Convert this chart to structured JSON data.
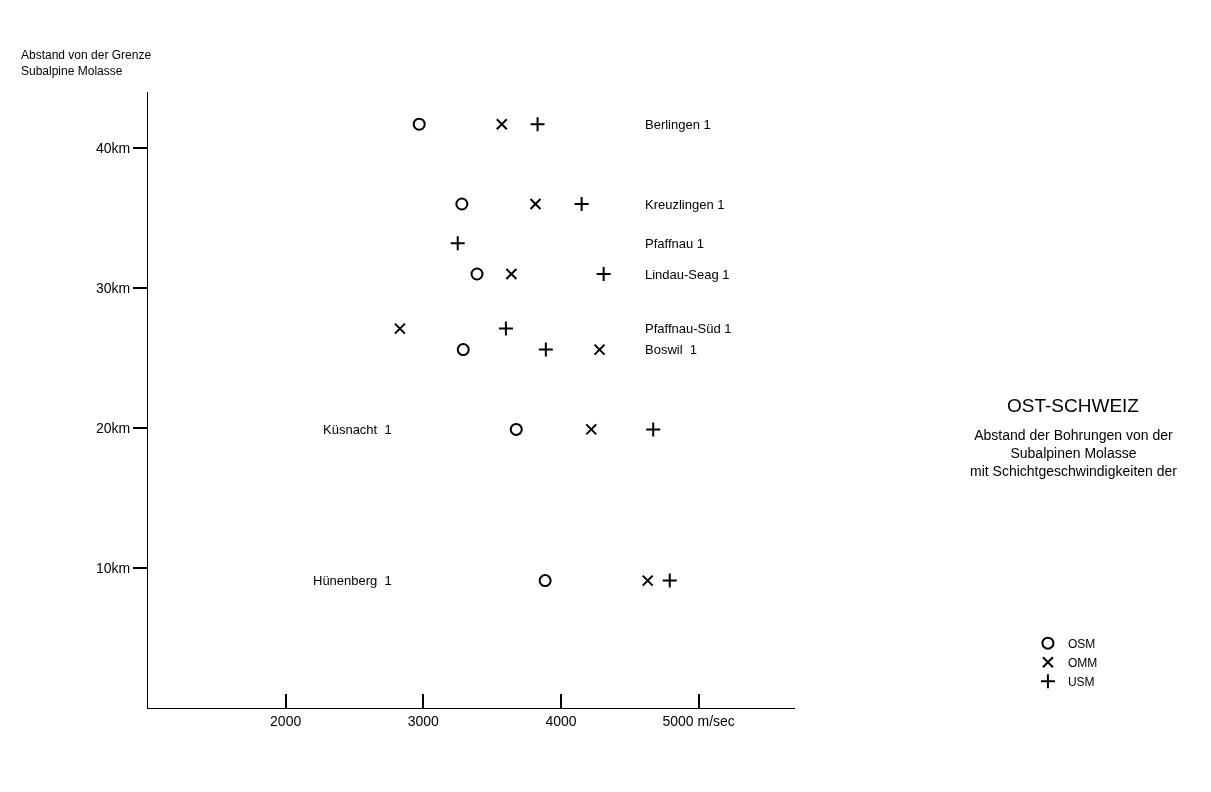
{
  "chart_data": {
    "type": "scatter",
    "title": "OST-SCHWEIZ",
    "subtitle": "Abstand der Bohrungen von der\nSubalpinen Molasse\nmit Schichtgeschwindigkeiten der",
    "ylabel": "Abstand von der Grenze\nSubalpine Molasse",
    "xlim": [
      1000,
      5700
    ],
    "ylim": [
      0,
      44
    ],
    "xticks": [
      2000,
      3000,
      4000,
      {
        "value": 5000,
        "label": "5000 m/sec"
      }
    ],
    "yticks": [
      {
        "value": 10,
        "label": "10km"
      },
      {
        "value": 20,
        "label": "20km"
      },
      {
        "value": 30,
        "label": "30km"
      },
      {
        "value": 40,
        "label": "40km"
      }
    ],
    "legend": "bottom right",
    "series": [
      {
        "name": "OSM",
        "color": "#000000",
        "marker": "circle",
        "x": [
          2970,
          3280,
          3390,
          3290,
          3675,
          3885
        ],
        "values": [
          41.7,
          36.0,
          31.0,
          25.6,
          19.9,
          9.1
        ]
      },
      {
        "name": "OMM",
        "color": "#000000",
        "marker": "cross",
        "x": [
          3570,
          3815,
          3640,
          2830,
          4280,
          4220,
          4630
        ],
        "values": [
          41.7,
          36.0,
          31.0,
          27.1,
          25.6,
          19.9,
          9.1
        ]
      },
      {
        "name": "USM",
        "color": "#000000",
        "marker": "plus",
        "x": [
          3830,
          4150,
          3250,
          4310,
          3600,
          3890,
          4670,
          4790
        ],
        "values": [
          41.7,
          36.0,
          33.2,
          31.0,
          27.1,
          25.6,
          19.9,
          9.1
        ]
      }
    ],
    "annotations": [
      "Berlingen 1",
      "Kreuzlingen 1",
      "Pfaffnau 1",
      "Lindau-Seag 1",
      "Pfaffnau-Süd 1",
      "Boswil  1",
      "Küsnacht  1",
      "Hünenberg  1"
    ]
  }
}
